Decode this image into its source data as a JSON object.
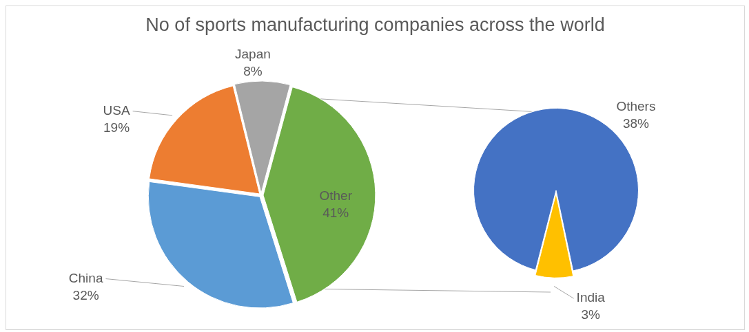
{
  "chart_data": [
    {
      "type": "pie",
      "title": "No of sports manufacturing companies across the world",
      "categories": [
        "Other",
        "China",
        "USA",
        "Japan"
      ],
      "values": [
        41,
        32,
        19,
        8
      ],
      "colors": [
        "#70ad47",
        "#5b9bd5",
        "#ed7d31",
        "#a5a5a5"
      ],
      "value_labels": [
        "41%",
        "32%",
        "19%",
        "8%"
      ],
      "legend": false
    },
    {
      "type": "pie",
      "categories": [
        "Others",
        "India"
      ],
      "values": [
        38,
        3
      ],
      "colors": [
        "#4472c4",
        "#ffc000"
      ],
      "value_labels": [
        "38%",
        "3%"
      ],
      "legend": false
    }
  ]
}
